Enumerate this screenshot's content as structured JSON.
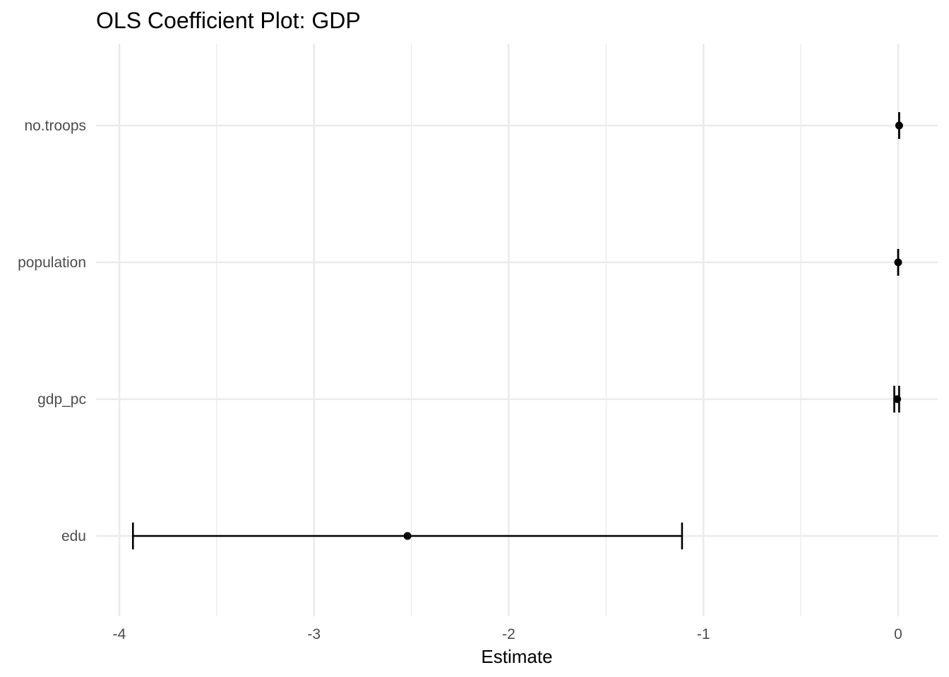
{
  "chart_data": {
    "type": "scatter",
    "title": "OLS Coefficient Plot: GDP",
    "xlabel": "Estimate",
    "ylabel": "",
    "xlim": [
      -4.0,
      0.0
    ],
    "x_ticks": [
      {
        "value": -4,
        "label": "-4"
      },
      {
        "value": -3,
        "label": "-3"
      },
      {
        "value": -2,
        "label": "-2"
      },
      {
        "value": -1,
        "label": "-1"
      },
      {
        "value": 0,
        "label": "0"
      }
    ],
    "x_minor_ticks": [
      -3.5,
      -2.5,
      -1.5,
      -0.5
    ],
    "categories": [
      "edu",
      "gdp_pc",
      "population",
      "no.troops"
    ],
    "estimates": [
      {
        "term": "edu",
        "estimate": -2.52,
        "conf_low": -3.93,
        "conf_high": -1.11
      },
      {
        "term": "gdp_pc",
        "estimate": -0.005,
        "conf_low": -0.02,
        "conf_high": 0.005
      },
      {
        "term": "population",
        "estimate": 0.0,
        "conf_low": 0.0,
        "conf_high": 0.0
      },
      {
        "term": "no.troops",
        "estimate": 0.005,
        "conf_low": 0.005,
        "conf_high": 0.005
      }
    ],
    "grid": true,
    "legend": "none",
    "colors": {
      "point": "#000000",
      "errorbar": "#000000",
      "grid_major": "#ebebeb",
      "grid_minor": "#ebebeb",
      "tick_text": "#4d4d4d",
      "title_text": "#000000"
    }
  }
}
